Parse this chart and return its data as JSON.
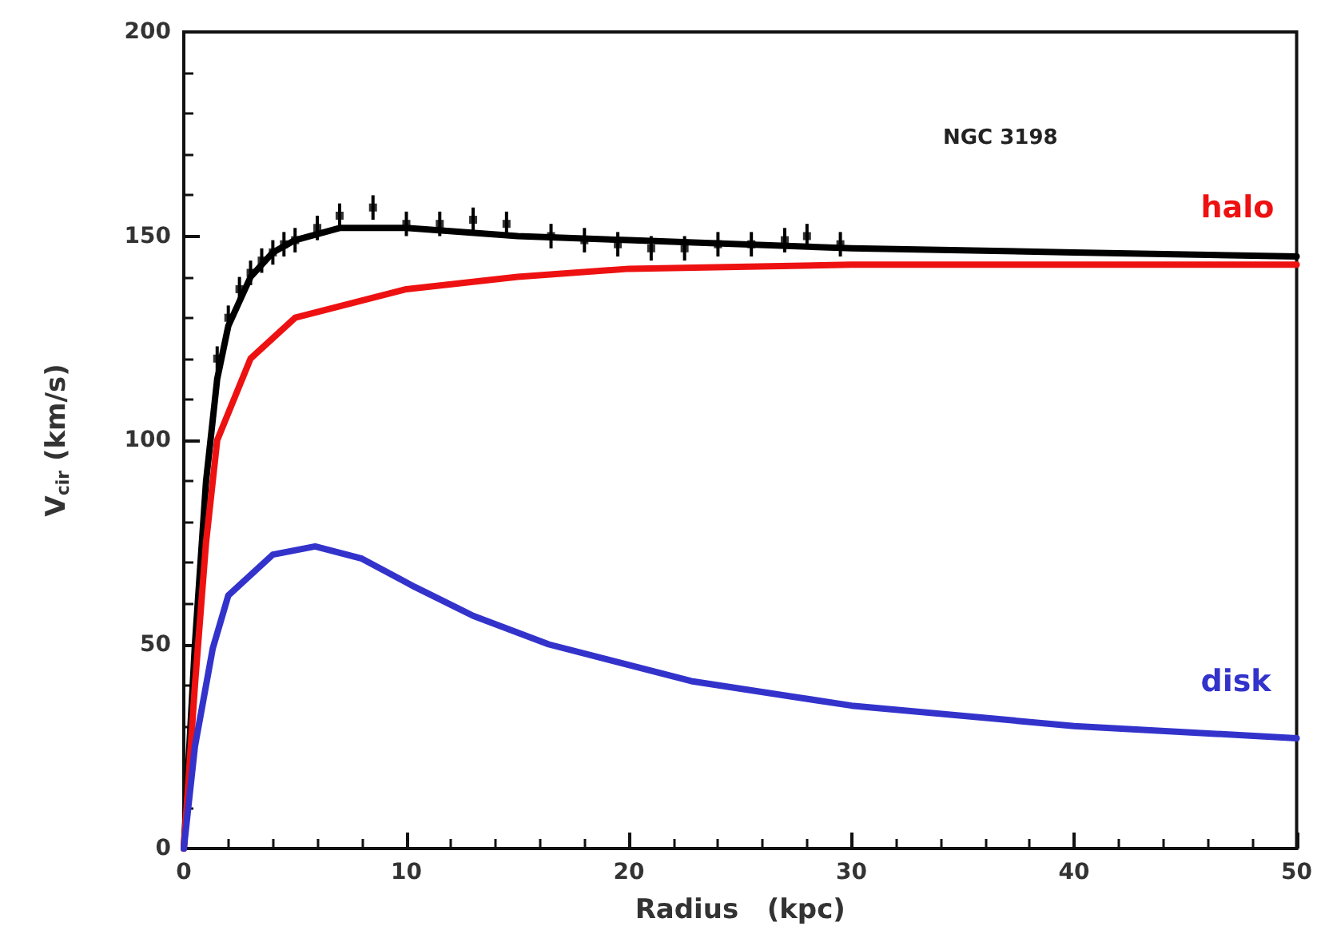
{
  "chart_data": {
    "type": "line",
    "xlabel": "Radius   (kpc)",
    "ylabel": "V$_{cir}$ (km/s)",
    "annotations": [
      "NGC 3198"
    ],
    "xlim": [
      0,
      50
    ],
    "xticks": [
      0,
      10,
      20,
      30,
      40,
      50
    ],
    "ylim": [
      0,
      200
    ],
    "yticks": [
      0,
      50,
      100,
      150,
      200
    ],
    "grid": false,
    "legend": false,
    "line_style": "solid",
    "series": [
      {
        "color": "#000000",
        "x": [
          0,
          0.5,
          1,
          1.5,
          2,
          3,
          4,
          5,
          7,
          10,
          15,
          20,
          30,
          40,
          50
        ],
        "values": [
          0,
          50,
          90,
          115,
          128,
          140,
          146,
          149,
          152,
          152,
          150,
          149,
          147,
          146,
          145
        ]
      },
      {
        "name": "halo",
        "color": "#ee1111",
        "x": [
          0,
          0.5,
          1,
          1.5,
          3,
          5,
          10,
          15,
          20,
          30,
          40,
          50
        ],
        "values": [
          0,
          40,
          75,
          100,
          120,
          130,
          137,
          140,
          142,
          143,
          143,
          143
        ]
      },
      {
        "name": "disk",
        "color": "#3333cc",
        "x": [
          0,
          0.5,
          1.3,
          2,
          4,
          5.9,
          8,
          10.4,
          13,
          16.4,
          22.8,
          27.6,
          30,
          40,
          50
        ],
        "values": [
          0,
          25,
          49,
          62,
          72,
          74,
          71,
          64,
          57,
          50,
          41,
          37,
          35,
          30,
          27
        ]
      },
      {
        "type": "scatter",
        "marker": "square",
        "color": "#000000",
        "x": [
          1.5,
          2,
          2.5,
          3,
          3.5,
          4,
          4.5,
          5,
          6,
          7,
          8.5,
          10,
          11.5,
          13,
          14.5,
          16.5,
          18,
          19.5,
          21,
          22.5,
          24,
          25.5,
          27,
          28,
          29.5
        ],
        "values": [
          120,
          130,
          137,
          141,
          144,
          146,
          148,
          149,
          152,
          155,
          157,
          153,
          153,
          154,
          153,
          150,
          149,
          148,
          147,
          147,
          148,
          148,
          149,
          150,
          148
        ],
        "errors": [
          3,
          3,
          3,
          3,
          3,
          3,
          3,
          3,
          3,
          3,
          3,
          3,
          3,
          3,
          3,
          3,
          3,
          3,
          3,
          3,
          3,
          3,
          3,
          3,
          3
        ]
      }
    ]
  }
}
